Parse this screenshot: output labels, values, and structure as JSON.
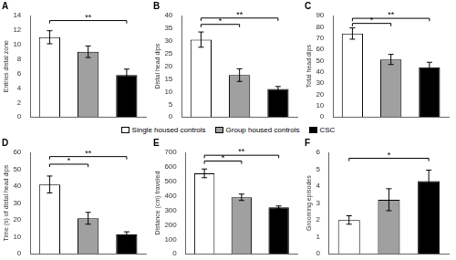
{
  "chart_data": [
    {
      "type": "bar",
      "title": "A",
      "ylabel": "Entries distal zone",
      "categories": [
        "Single housed controls",
        "Group housed controls",
        "CSC"
      ],
      "colors": [
        "white",
        "#a0a0a0",
        "black"
      ],
      "values": [
        11.0,
        9.0,
        5.8
      ],
      "errors": [
        0.9,
        0.8,
        0.8
      ],
      "ylim": [
        0,
        14
      ],
      "yticks": [
        0,
        2,
        4,
        6,
        8,
        10,
        12,
        14
      ],
      "annotations": [
        {
          "x1": "Single housed controls",
          "x2": "CSC",
          "y": 13.3,
          "label": "**"
        }
      ],
      "grid": false,
      "tick_labels": "y",
      "legend": "center"
    },
    {
      "type": "bar",
      "title": "B",
      "ylabel": "Distal head dips",
      "categories": [
        "Single housed controls",
        "Group housed controls",
        "CSC"
      ],
      "colors": [
        "white",
        "#a0a0a0",
        "black"
      ],
      "values": [
        30.5,
        16.5,
        11.0
      ],
      "errors": [
        3.0,
        2.5,
        1.0
      ],
      "ylim": [
        0,
        40
      ],
      "yticks": [
        0,
        5,
        10,
        15,
        20,
        25,
        30,
        35,
        40
      ],
      "annotations": [
        {
          "x1": "Single housed controls",
          "x2": "Group housed controls",
          "y": 36.5,
          "label": "*"
        },
        {
          "x1": "Single housed controls",
          "x2": "CSC",
          "y": 39.0,
          "label": "**"
        }
      ],
      "grid": false,
      "tick_labels": "y",
      "legend": "center"
    },
    {
      "type": "bar",
      "title": "C",
      "ylabel": "Total head dips",
      "categories": [
        "Single housed controls",
        "Group housed controls",
        "CSC"
      ],
      "colors": [
        "white",
        "#a0a0a0",
        "black"
      ],
      "values": [
        74.0,
        51.0,
        44.0
      ],
      "errors": [
        5.0,
        4.5,
        4.5
      ],
      "ylim": [
        0,
        90
      ],
      "yticks": [
        0,
        10,
        20,
        30,
        40,
        50,
        60,
        70,
        80,
        90
      ],
      "annotations": [
        {
          "x1": "Single housed controls",
          "x2": "Group housed controls",
          "y": 83.0,
          "label": "*"
        },
        {
          "x1": "Single housed controls",
          "x2": "CSC",
          "y": 87.5,
          "label": "**"
        }
      ],
      "grid": false,
      "tick_labels": "y",
      "legend": "center"
    },
    {
      "type": "bar",
      "title": "D",
      "ylabel": "Time (s) of distal head dips",
      "categories": [
        "Single housed controls",
        "Group housed controls",
        "CSC"
      ],
      "colors": [
        "white",
        "#a0a0a0",
        "black"
      ],
      "values": [
        41.0,
        21.0,
        11.5
      ],
      "errors": [
        5.0,
        3.5,
        1.5
      ],
      "ylim": [
        0,
        60
      ],
      "yticks": [
        0,
        10,
        20,
        30,
        40,
        50,
        60
      ],
      "annotations": [
        {
          "x1": "Single housed controls",
          "x2": "Group housed controls",
          "y": 53.0,
          "label": "*"
        },
        {
          "x1": "Single housed controls",
          "x2": "CSC",
          "y": 57.5,
          "label": "**"
        }
      ],
      "grid": false,
      "tick_labels": "y",
      "legend": "center"
    },
    {
      "type": "bar",
      "title": "E",
      "ylabel": "Distance (cm) traveled",
      "categories": [
        "Single housed controls",
        "Group housed controls",
        "CSC"
      ],
      "colors": [
        "white",
        "#a0a0a0",
        "black"
      ],
      "values": [
        555.0,
        390.0,
        320.0
      ],
      "errors": [
        30.0,
        22.0,
        10.0
      ],
      "ylim": [
        0,
        700
      ],
      "yticks": [
        0,
        100,
        200,
        300,
        400,
        500,
        600,
        700
      ],
      "annotations": [
        {
          "x1": "Single housed controls",
          "x2": "Group housed controls",
          "y": 640.0,
          "label": "*"
        },
        {
          "x1": "Single housed controls",
          "x2": "CSC",
          "y": 680.0,
          "label": "**"
        }
      ],
      "grid": false,
      "tick_labels": "y",
      "legend": "center"
    },
    {
      "type": "bar",
      "title": "F",
      "ylabel": "Grooming episodes",
      "categories": [
        "Single housed controls",
        "Group housed controls",
        "CSC"
      ],
      "colors": [
        "white",
        "#a0a0a0",
        "black"
      ],
      "values": [
        2.0,
        3.2,
        4.3
      ],
      "errors": [
        0.25,
        0.65,
        0.65
      ],
      "ylim": [
        0,
        6
      ],
      "yticks": [
        0,
        1,
        2,
        3,
        4,
        5,
        6
      ],
      "annotations": [
        {
          "x1": "Single housed controls",
          "x2": "CSC",
          "y": 5.65,
          "label": "*"
        }
      ],
      "grid": false,
      "tick_labels": "y",
      "legend": "center"
    }
  ]
}
